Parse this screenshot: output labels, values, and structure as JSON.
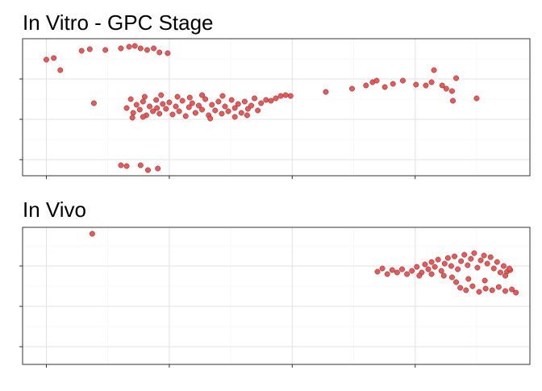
{
  "chart_data": [
    {
      "type": "scatter",
      "title": "In Vitro - GPC Stage",
      "color": "#e8595a",
      "grid": true,
      "xlim": [
        -29,
        590
      ],
      "ylim": [
        -20,
        150
      ],
      "xticks": [
        0,
        150,
        300,
        450
      ],
      "yticks": [
        0,
        50,
        100
      ],
      "x": [
        0,
        9,
        17,
        43,
        53,
        72,
        91,
        101,
        108,
        115,
        123,
        131,
        138,
        148,
        58,
        91,
        98,
        115,
        124,
        136,
        341,
        373,
        390,
        398,
        403,
        413,
        423,
        435,
        451,
        463,
        473,
        470,
        483,
        488,
        495,
        496,
        500,
        525,
        98,
        103,
        106,
        110,
        114,
        118,
        122,
        126,
        130,
        134,
        138,
        142,
        146,
        150,
        154,
        158,
        162,
        166,
        170,
        174,
        178,
        182,
        186,
        190,
        194,
        198,
        202,
        206,
        210,
        214,
        218,
        222,
        226,
        230,
        234,
        238,
        242,
        246,
        250,
        254,
        258,
        262,
        268,
        274,
        280,
        286,
        292,
        298,
        105,
        118,
        140,
        160,
        190,
        200,
        230,
        120,
        175,
        215,
        245,
        135
      ],
      "values": [
        124,
        126,
        111,
        135,
        137,
        136,
        138,
        140,
        141,
        138,
        136,
        138,
        133,
        132,
        70,
        -7,
        -8,
        -7,
        -13,
        -11,
        84,
        88,
        92,
        96,
        98,
        90,
        94,
        98,
        93,
        92,
        111,
        96,
        92,
        88,
        85,
        73,
        101,
        76,
        64,
        75,
        58,
        68,
        62,
        72,
        55,
        66,
        60,
        74,
        57,
        69,
        63,
        71,
        56,
        66,
        60,
        73,
        54,
        65,
        70,
        58,
        67,
        62,
        75,
        55,
        68,
        61,
        72,
        57,
        66,
        60,
        74,
        64,
        69,
        58,
        72,
        63,
        67,
        76,
        61,
        70,
        74,
        73,
        76,
        79,
        80,
        79,
        52,
        53,
        80,
        78,
        80,
        51,
        53,
        78,
        77,
        79,
        55,
        64
      ]
    },
    {
      "type": "scatter",
      "title": "In Vivo",
      "color": "#e8595a",
      "grid": true,
      "xlim": [
        -29,
        590
      ],
      "ylim": [
        -22,
        148
      ],
      "xticks": [
        0,
        150,
        300,
        450
      ],
      "yticks": [
        0,
        50,
        100
      ],
      "x": [
        56,
        404,
        410,
        416,
        422,
        428,
        434,
        440,
        446,
        452,
        458,
        462,
        466,
        470,
        474,
        478,
        482,
        486,
        490,
        494,
        498,
        502,
        506,
        510,
        514,
        518,
        522,
        526,
        530,
        534,
        538,
        542,
        546,
        550,
        554,
        558,
        562,
        566,
        560,
        500,
        505,
        512,
        520,
        528,
        536,
        544,
        552,
        560,
        568,
        573,
        495,
        515,
        535,
        455,
        470,
        485,
        565
      ],
      "values": [
        140,
        93,
        97,
        90,
        95,
        92,
        96,
        90,
        94,
        99,
        92,
        102,
        96,
        105,
        99,
        108,
        94,
        103,
        110,
        100,
        112,
        96,
        106,
        114,
        101,
        109,
        116,
        98,
        107,
        113,
        103,
        111,
        97,
        105,
        92,
        100,
        93,
        95,
        88,
        80,
        73,
        70,
        75,
        68,
        72,
        70,
        74,
        69,
        71,
        67,
        86,
        84,
        82,
        88,
        90,
        88,
        97
      ]
    }
  ]
}
